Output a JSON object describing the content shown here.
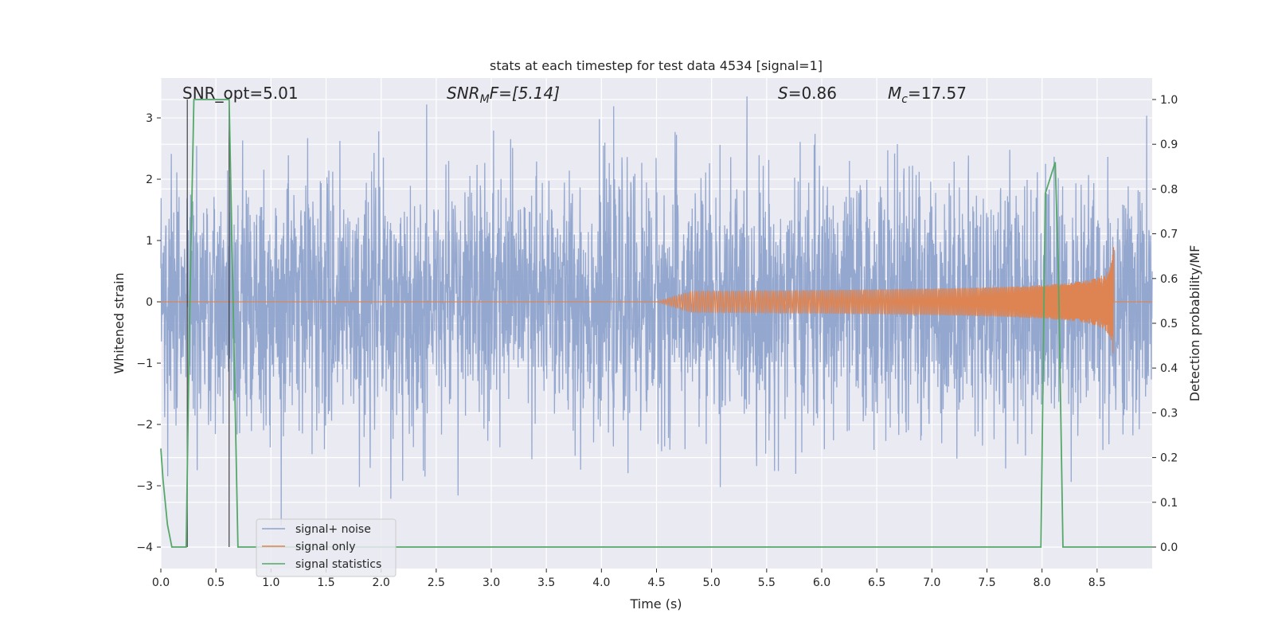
{
  "chart_data": {
    "type": "line",
    "title": "stats at each timestep for test data 4534 [signal=1]",
    "xlabel": "Time (s)",
    "ylabel_left": "Whitened strain",
    "ylabel_right": "Detection probability/MF",
    "xlim": [
      0.0,
      9.0
    ],
    "ylim_left": [
      -4.35,
      3.65
    ],
    "ylim_right": [
      -0.048,
      1.048
    ],
    "x_ticks": [
      0.0,
      0.5,
      1.0,
      1.5,
      2.0,
      2.5,
      3.0,
      3.5,
      4.0,
      4.5,
      5.0,
      5.5,
      6.0,
      6.5,
      7.0,
      7.5,
      8.0,
      8.5
    ],
    "x_tick_labels": [
      "0.0",
      "0.5",
      "1.0",
      "1.5",
      "2.0",
      "2.5",
      "3.0",
      "3.5",
      "4.0",
      "4.5",
      "5.0",
      "5.5",
      "6.0",
      "6.5",
      "7.0",
      "7.5",
      "8.0",
      "8.5"
    ],
    "y_left_ticks": [
      -4,
      -3,
      -2,
      -1,
      0,
      1,
      2,
      3
    ],
    "y_left_tick_labels": [
      "−4",
      "−3",
      "−2",
      "−1",
      "0",
      "1",
      "2",
      "3"
    ],
    "y_right_ticks": [
      0.0,
      0.1,
      0.2,
      0.3,
      0.4,
      0.5,
      0.6,
      0.7,
      0.8,
      0.9,
      1.0
    ],
    "y_right_tick_labels": [
      "0.0",
      "0.1",
      "0.2",
      "0.3",
      "0.4",
      "0.5",
      "0.6",
      "0.7",
      "0.8",
      "0.9",
      "1.0"
    ],
    "grid": true,
    "annotations": {
      "snr_opt": "SNR_opt=5.01",
      "snr_mf_prefix": "SNR",
      "snr_mf_sub": "M",
      "snr_mf_suffix": "F=[5.14]",
      "s_var": "S",
      "s_val": "=0.86",
      "mc_var": "M",
      "mc_sub": "c",
      "mc_val": "=17.57"
    },
    "vertical_markers_x": [
      0.24,
      0.62
    ],
    "legend": {
      "position": "lower-left",
      "entries": [
        {
          "label": "signal+ noise",
          "color": "#8fa3cc"
        },
        {
          "label": "signal only",
          "color": "#dd8452"
        },
        {
          "label": "signal statistics",
          "color": "#55a868"
        }
      ]
    },
    "series": [
      {
        "name": "signal+ noise",
        "axis": "left",
        "kind": "noise",
        "x_range": [
          0.0,
          9.0
        ],
        "typical_amplitude": 1.0,
        "min": -4.0,
        "max": 3.35,
        "color": "#8fa3cc"
      },
      {
        "name": "signal only",
        "axis": "left",
        "kind": "chirp",
        "x_range": [
          4.5,
          8.65
        ],
        "end_x": 8.65,
        "peak_amplitude": 0.98,
        "color": "#dd8452"
      },
      {
        "name": "signal statistics",
        "axis": "right",
        "x": [
          0.0,
          0.02,
          0.06,
          0.1,
          0.23,
          0.26,
          0.3,
          0.62,
          0.66,
          0.7,
          0.8,
          5.3,
          7.0,
          7.99,
          8.03,
          8.12,
          8.15,
          8.19,
          8.3,
          9.0
        ],
        "y": [
          0.22,
          0.15,
          0.05,
          0.0,
          0.0,
          0.5,
          1.0,
          1.0,
          0.5,
          0.0,
          0.0,
          0.0,
          0.0,
          0.0,
          0.79,
          0.86,
          0.6,
          0.0,
          0.0,
          0.0
        ],
        "color": "#55a868"
      }
    ]
  },
  "colors": {
    "plot_background": "#eaeaf2",
    "grid": "#ffffff",
    "text": "#262626"
  }
}
